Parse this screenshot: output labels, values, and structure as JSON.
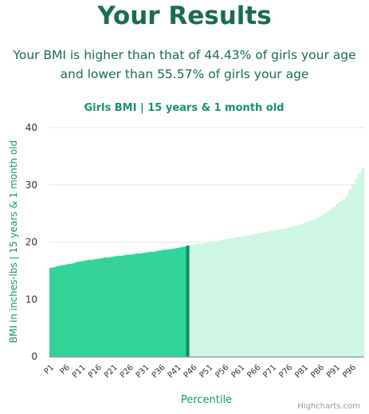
{
  "page": {
    "title": "Your Results",
    "subtitle_line1": "Your BMI is higher than that of 44.43% of girls your age",
    "subtitle_line2": "and lower than 55.57% of girls your age",
    "credit": "Highcharts.com"
  },
  "colors": {
    "title": "#1a6b55",
    "accent": "#16936a",
    "bar_below": "#33d399",
    "bar_above": "#cdf7e3",
    "marker": "#0d8c5f",
    "grid": "#e6e6e6",
    "axis": "#999999"
  },
  "chart_data": {
    "type": "bar",
    "title": "Girls BMI | 15 years & 1 month old",
    "xlabel": "Percentile",
    "ylabel": "BMI in inches-lbs | 15 years & 1 month old",
    "ylim": [
      0,
      40
    ],
    "yticks": [
      0,
      10,
      20,
      30,
      40
    ],
    "grid": true,
    "highlight_percentile": "P44",
    "tick_labels": [
      "P1",
      "P6",
      "P11",
      "P16",
      "P21",
      "P26",
      "P31",
      "P36",
      "P41",
      "P46",
      "P51",
      "P56",
      "P61",
      "P66",
      "P71",
      "P76",
      "P81",
      "P86",
      "P91",
      "P96"
    ],
    "categories": [
      "P1",
      "P2",
      "P3",
      "P4",
      "P5",
      "P6",
      "P7",
      "P8",
      "P9",
      "P10",
      "P11",
      "P12",
      "P13",
      "P14",
      "P15",
      "P16",
      "P17",
      "P18",
      "P19",
      "P20",
      "P21",
      "P22",
      "P23",
      "P24",
      "P25",
      "P26",
      "P27",
      "P28",
      "P29",
      "P30",
      "P31",
      "P32",
      "P33",
      "P34",
      "P35",
      "P36",
      "P37",
      "P38",
      "P39",
      "P40",
      "P41",
      "P42",
      "P43",
      "P44",
      "P45",
      "P46",
      "P47",
      "P48",
      "P49",
      "P50",
      "P51",
      "P52",
      "P53",
      "P54",
      "P55",
      "P56",
      "P57",
      "P58",
      "P59",
      "P60",
      "P61",
      "P62",
      "P63",
      "P64",
      "P65",
      "P66",
      "P67",
      "P68",
      "P69",
      "P70",
      "P71",
      "P72",
      "P73",
      "P74",
      "P75",
      "P76",
      "P77",
      "P78",
      "P79",
      "P80",
      "P81",
      "P82",
      "P83",
      "P84",
      "P85",
      "P86",
      "P87",
      "P88",
      "P89",
      "P90",
      "P91",
      "P92",
      "P93",
      "P94",
      "P95",
      "P96",
      "P97",
      "P98",
      "P99"
    ],
    "values": [
      15.5,
      15.6,
      15.8,
      15.9,
      16.0,
      16.1,
      16.2,
      16.3,
      16.5,
      16.6,
      16.7,
      16.8,
      16.9,
      16.9,
      17.0,
      17.1,
      17.2,
      17.3,
      17.3,
      17.4,
      17.5,
      17.6,
      17.6,
      17.7,
      17.8,
      17.8,
      17.9,
      18.0,
      18.0,
      18.1,
      18.2,
      18.3,
      18.3,
      18.4,
      18.5,
      18.6,
      18.7,
      18.7,
      18.8,
      18.9,
      19.0,
      19.1,
      19.2,
      19.4,
      19.5,
      19.6,
      19.7,
      19.7,
      19.8,
      19.9,
      20.0,
      20.1,
      20.2,
      20.3,
      20.4,
      20.5,
      20.6,
      20.7,
      20.8,
      20.9,
      21.0,
      21.1,
      21.2,
      21.3,
      21.4,
      21.5,
      21.6,
      21.7,
      21.8,
      21.9,
      22.0,
      22.1,
      22.2,
      22.3,
      22.4,
      22.6,
      22.7,
      22.9,
      23.0,
      23.2,
      23.4,
      23.6,
      23.8,
      24.0,
      24.3,
      24.6,
      25.0,
      25.4,
      25.8,
      26.2,
      26.7,
      27.1,
      27.5,
      28.0,
      29.2,
      30.0,
      31.0,
      32.0,
      33.0
    ]
  }
}
